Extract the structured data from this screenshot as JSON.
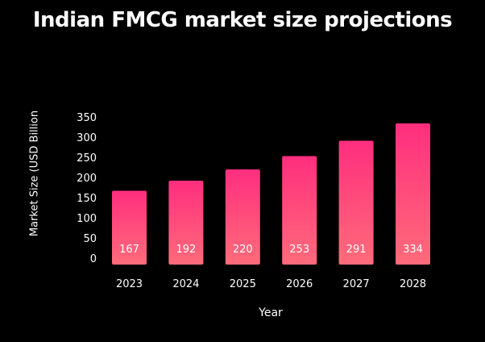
{
  "chart_data": {
    "type": "bar",
    "title": "Indian FMCG market size projections",
    "xlabel": "Year",
    "ylabel": "Market Size (USD Billion",
    "categories": [
      "2023",
      "2024",
      "2025",
      "2026",
      "2027",
      "2028"
    ],
    "values": [
      167,
      192,
      220,
      253,
      291,
      334
    ],
    "y_ticks": [
      "0",
      "50",
      "100",
      "150",
      "200",
      "250",
      "300",
      "350"
    ],
    "ylim": [
      0,
      350
    ],
    "grid": false,
    "legend": "none",
    "data_labels": true
  },
  "colors": {
    "background": "#000000",
    "bar_top": "#ff2e7e",
    "bar_bottom": "#ff6b7a",
    "text": "#ffffff"
  }
}
